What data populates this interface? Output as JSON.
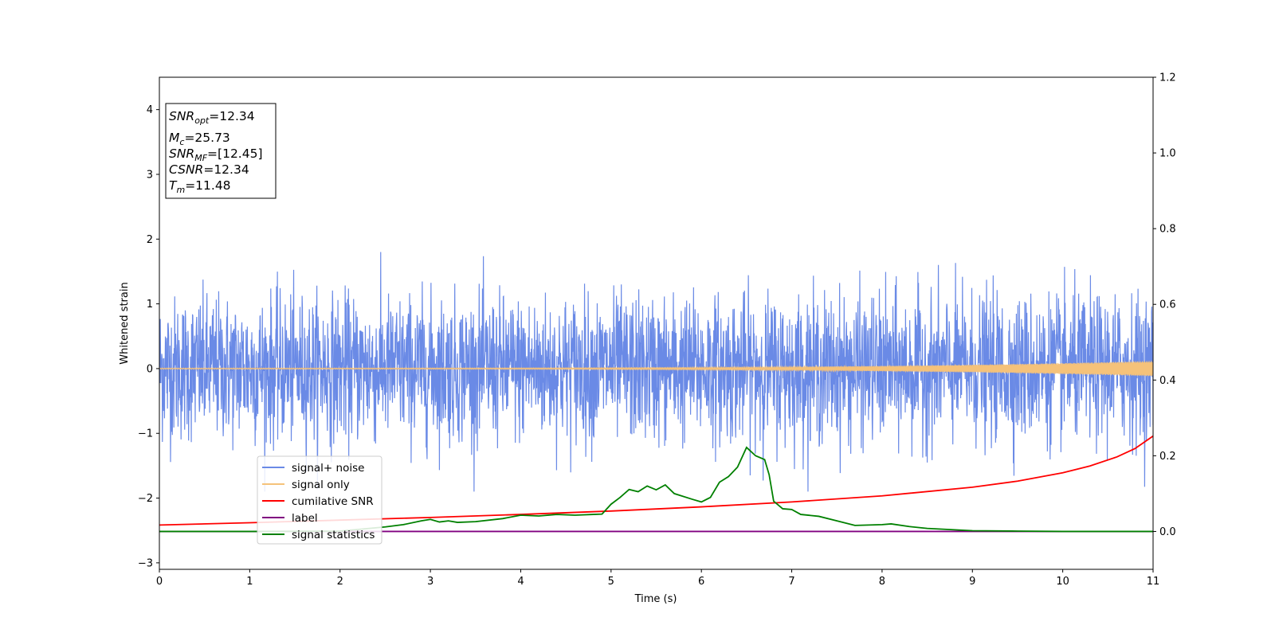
{
  "chart_data": {
    "type": "line",
    "xlabel": "Time (s)",
    "ylabel": "Whitened strain",
    "xlim": [
      0,
      11
    ],
    "ylim": [
      -3.1,
      4.5
    ],
    "y2lim": [
      -0.1,
      1.2
    ],
    "x_ticks": [
      "0",
      "1",
      "2",
      "3",
      "4",
      "5",
      "6",
      "7",
      "8",
      "9",
      "10",
      "11"
    ],
    "y_ticks": [
      "−3",
      "−2",
      "−1",
      "0",
      "1",
      "2",
      "3",
      "4"
    ],
    "y2_ticks": [
      "0.0",
      "0.2",
      "0.4",
      "0.6",
      "0.8",
      "1.0",
      "1.2"
    ],
    "grid": false,
    "legend_position": "lower-left",
    "annotation": [
      {
        "main": "SNR",
        "sub": "opt",
        "rest": "=12.34"
      },
      {
        "main": "M",
        "sub": "c",
        "rest": "=25.73"
      },
      {
        "main": "SNR",
        "sub": "MF",
        "rest": "=[12.45]"
      },
      {
        "main": "CSNR",
        "sub": "",
        "rest": "=12.34"
      },
      {
        "main": "T",
        "sub": "m",
        "rest": "=11.48"
      }
    ],
    "series": [
      {
        "name": "signal+ noise",
        "color": "#6a8ae6",
        "axis": "left",
        "description_values": {
          "noise_std": 0.55,
          "envelope": [
            -1.9,
            2.1
          ]
        }
      },
      {
        "name": "signal only",
        "color": "#f5c27a",
        "axis": "left",
        "chirp": {
          "amplitude_start": 0.008,
          "amplitude_end": 0.12
        }
      },
      {
        "name": "cumilative SNR",
        "color": "#ff0000",
        "axis": "right",
        "x": [
          0,
          1,
          2,
          3,
          4,
          5,
          6,
          7,
          8,
          9,
          9.5,
          10,
          10.3,
          10.6,
          10.8,
          11
        ],
        "y": [
          0.017,
          0.023,
          0.03,
          0.037,
          0.045,
          0.054,
          0.065,
          0.078,
          0.094,
          0.117,
          0.133,
          0.155,
          0.173,
          0.197,
          0.219,
          0.252
        ]
      },
      {
        "name": "label",
        "color": "#800080",
        "axis": "right",
        "x": [
          0,
          11
        ],
        "y": [
          0.0,
          0.0
        ]
      },
      {
        "name": "signal statistics",
        "color": "#008000",
        "axis": "right",
        "x": [
          0,
          1,
          2,
          2.5,
          2.7,
          2.9,
          3.0,
          3.1,
          3.2,
          3.3,
          3.5,
          3.8,
          4.0,
          4.2,
          4.4,
          4.6,
          4.8,
          4.9,
          5.0,
          5.1,
          5.2,
          5.3,
          5.4,
          5.5,
          5.6,
          5.7,
          5.9,
          6.0,
          6.1,
          6.2,
          6.3,
          6.4,
          6.5,
          6.6,
          6.7,
          6.75,
          6.8,
          6.9,
          7.0,
          7.1,
          7.3,
          7.5,
          7.7,
          8.0,
          8.1,
          8.3,
          8.5,
          9.0,
          9.5,
          10,
          11
        ],
        "y": [
          0.0,
          0.0,
          0.001,
          0.012,
          0.018,
          0.028,
          0.032,
          0.025,
          0.028,
          0.024,
          0.026,
          0.034,
          0.043,
          0.041,
          0.045,
          0.043,
          0.045,
          0.046,
          0.072,
          0.09,
          0.111,
          0.105,
          0.12,
          0.11,
          0.123,
          0.1,
          0.085,
          0.078,
          0.09,
          0.13,
          0.145,
          0.17,
          0.222,
          0.2,
          0.19,
          0.15,
          0.08,
          0.06,
          0.058,
          0.045,
          0.04,
          0.028,
          0.016,
          0.018,
          0.02,
          0.013,
          0.008,
          0.002,
          0.001,
          0.0,
          0.0
        ]
      }
    ]
  }
}
